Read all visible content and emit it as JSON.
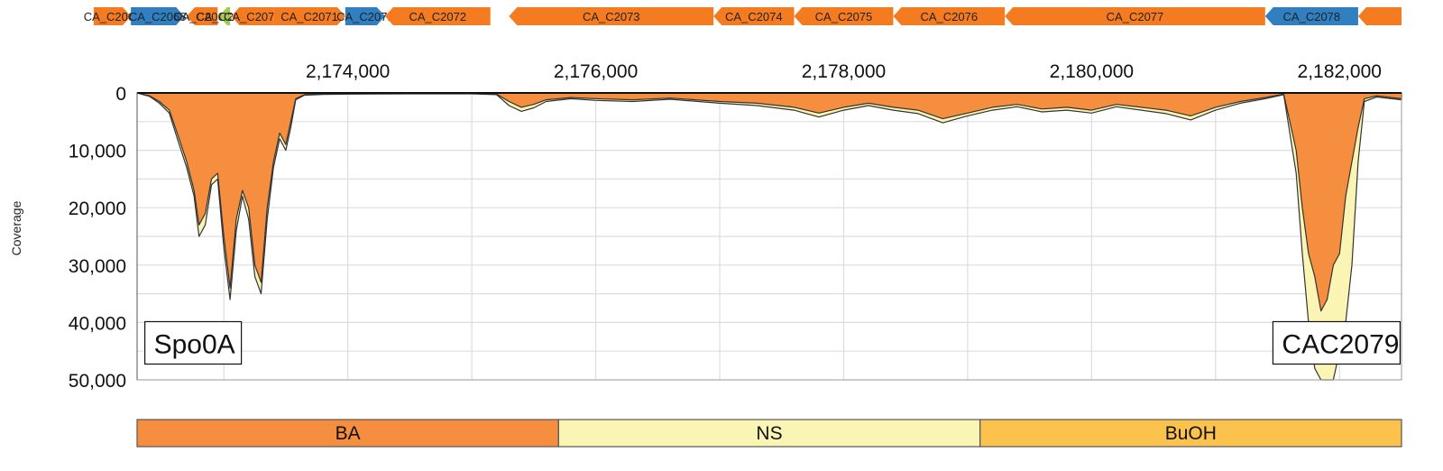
{
  "chart_data": {
    "type": "area",
    "title": "",
    "xlabel": "",
    "ylabel": "Coverage",
    "xlim": [
      2172300,
      2182500
    ],
    "ylim": [
      0,
      50000
    ],
    "y_inverted": true,
    "x_ticks": [
      2174000,
      2176000,
      2178000,
      2180000,
      2182000
    ],
    "x_tick_labels": [
      "2,174,000",
      "2,176,000",
      "2,178,000",
      "2,180,000",
      "2,182,000"
    ],
    "y_ticks": [
      0,
      10000,
      20000,
      30000,
      40000,
      50000
    ],
    "y_tick_labels": [
      "0",
      "10,000",
      "20,000",
      "30,000",
      "40,000",
      "50,000"
    ],
    "grid": true,
    "colors": {
      "BA": "#f58f3f",
      "NS": "#faf5b4",
      "BuOH": "#fbc24e",
      "gene_orange": "#f47b20",
      "gene_blue": "#2f7fc1",
      "gene_green": "#a9c94a",
      "grid": "#dddddd",
      "outline": "#333333"
    },
    "series": [
      {
        "name": "BA",
        "color": "#f58f3f",
        "x": [
          2172300,
          2172400,
          2172480,
          2172560,
          2172640,
          2172700,
          2172760,
          2172800,
          2172850,
          2172900,
          2172950,
          2173000,
          2173050,
          2173100,
          2173150,
          2173200,
          2173250,
          2173300,
          2173350,
          2173400,
          2173450,
          2173500,
          2173540,
          2173580,
          2173650,
          2173800,
          2174000,
          2174500,
          2175000,
          2175200,
          2175300,
          2175400,
          2175500,
          2175600,
          2175800,
          2176000,
          2176300,
          2176600,
          2177000,
          2177300,
          2177600,
          2177800,
          2178000,
          2178200,
          2178400,
          2178600,
          2178800,
          2179000,
          2179200,
          2179400,
          2179600,
          2179800,
          2180000,
          2180200,
          2180400,
          2180600,
          2180800,
          2181000,
          2181200,
          2181400,
          2181550,
          2181650,
          2181700,
          2181750,
          2181800,
          2181850,
          2181900,
          2181950,
          2182000,
          2182050,
          2182100,
          2182150,
          2182200,
          2182300,
          2182500
        ],
        "y": [
          0,
          500,
          1500,
          3000,
          8000,
          12000,
          17000,
          23000,
          21000,
          15000,
          14000,
          25000,
          34000,
          22000,
          17000,
          20000,
          30000,
          33000,
          20000,
          12000,
          7000,
          9000,
          5000,
          1000,
          300,
          200,
          150,
          100,
          100,
          200,
          1500,
          2500,
          2000,
          1200,
          800,
          1000,
          1200,
          900,
          1500,
          1800,
          2500,
          3500,
          2500,
          1800,
          2500,
          3000,
          4500,
          3500,
          2500,
          2000,
          2800,
          2500,
          3000,
          2000,
          2500,
          3000,
          4000,
          2500,
          1500,
          800,
          200,
          10000,
          20000,
          28000,
          32000,
          38000,
          36000,
          30000,
          28000,
          18000,
          12000,
          6000,
          1000,
          500,
          1000
        ]
      },
      {
        "name": "NS",
        "color": "#faf5b4",
        "x": [
          2172300,
          2172400,
          2172480,
          2172560,
          2172640,
          2172700,
          2172760,
          2172800,
          2172850,
          2172900,
          2172950,
          2173000,
          2173050,
          2173100,
          2173150,
          2173200,
          2173250,
          2173300,
          2173350,
          2173400,
          2173450,
          2173500,
          2173540,
          2173580,
          2173650,
          2173800,
          2174000,
          2174500,
          2175000,
          2175200,
          2175300,
          2175400,
          2175500,
          2175600,
          2175800,
          2176000,
          2176300,
          2176600,
          2177000,
          2177300,
          2177600,
          2177800,
          2178000,
          2178200,
          2178400,
          2178600,
          2178800,
          2179000,
          2179200,
          2179400,
          2179600,
          2179800,
          2180000,
          2180200,
          2180400,
          2180600,
          2180800,
          2181000,
          2181200,
          2181400,
          2181550,
          2181650,
          2181700,
          2181750,
          2181800,
          2181850,
          2181900,
          2181950,
          2182000,
          2182050,
          2182100,
          2182150,
          2182200,
          2182300,
          2182500
        ],
        "y": [
          0,
          600,
          1800,
          3500,
          9000,
          13000,
          18000,
          25000,
          23000,
          16000,
          15000,
          27000,
          36000,
          24000,
          18000,
          22000,
          32000,
          35000,
          22000,
          13000,
          8000,
          10000,
          6000,
          1200,
          400,
          250,
          200,
          150,
          150,
          300,
          2200,
          3200,
          2600,
          1500,
          1000,
          1300,
          1500,
          1100,
          1800,
          2200,
          3000,
          4200,
          3000,
          2200,
          3000,
          3600,
          5200,
          4000,
          3000,
          2400,
          3300,
          3000,
          3500,
          2400,
          3000,
          3600,
          4700,
          3000,
          1800,
          1000,
          300,
          14000,
          28000,
          40000,
          48000,
          50000,
          50000,
          50000,
          45000,
          40000,
          30000,
          12000,
          1500,
          700,
          1200
        ]
      },
      {
        "name": "BuOH",
        "color": "#fbc24e",
        "x": [
          2172300,
          2172400,
          2172480,
          2172560,
          2172640,
          2172700,
          2172760,
          2172800,
          2172850,
          2172900,
          2172950,
          2173000,
          2173050,
          2173100,
          2173150,
          2173200,
          2173250,
          2173300,
          2173350,
          2173400,
          2173450,
          2173500,
          2173540,
          2173580,
          2173650,
          2173800,
          2174000,
          2174500,
          2175000,
          2175200,
          2175300,
          2175400,
          2175500,
          2175600,
          2175800,
          2176000,
          2176300,
          2176600,
          2177000,
          2177300,
          2177600,
          2177800,
          2178000,
          2178200,
          2178400,
          2178600,
          2178800,
          2179000,
          2179200,
          2179400,
          2179600,
          2179800,
          2180000,
          2180200,
          2180400,
          2180600,
          2180800,
          2181000,
          2181200,
          2181400,
          2181550,
          2181650,
          2181700,
          2181750,
          2181800,
          2181850,
          2181900,
          2181950,
          2182000,
          2182050,
          2182100,
          2182150,
          2182200,
          2182300,
          2182500
        ],
        "y": [
          0,
          450,
          1400,
          2800,
          7500,
          11500,
          16000,
          22000,
          20000,
          14500,
          13500,
          24000,
          33000,
          21000,
          16500,
          19000,
          29000,
          32000,
          19000,
          11500,
          6500,
          8500,
          4800,
          900,
          250,
          180,
          120,
          90,
          90,
          180,
          1200,
          2000,
          1700,
          1000,
          700,
          900,
          1000,
          800,
          1300,
          1600,
          2200,
          3000,
          2200,
          1600,
          2200,
          2700,
          4000,
          3000,
          2200,
          1800,
          2500,
          2200,
          2700,
          1800,
          2200,
          2700,
          3500,
          2200,
          1300,
          700,
          180,
          9000,
          18000,
          26000,
          30000,
          35000,
          34000,
          28000,
          25000,
          16000,
          10000,
          5000,
          900,
          450,
          900
        ]
      }
    ],
    "genes": [
      {
        "label": "CA_C2065",
        "start": 2171950,
        "end": 2172250,
        "strand": "+",
        "color": "#f47b20"
      },
      {
        "label": "CA_C2068",
        "start": 2172250,
        "end": 2172680,
        "strand": "+",
        "color": "#2f7fc1"
      },
      {
        "label": "CA_C2069",
        "start": 2172700,
        "end": 2172950,
        "strand": "-",
        "color": "#f47b20"
      },
      {
        "label": "CA_C2069",
        "start": 2172960,
        "end": 2173050,
        "strand": "-",
        "color": "#a9c94a"
      },
      {
        "label": "CA_C2070",
        "start": 2173060,
        "end": 2173400,
        "strand": "-",
        "color": "#f47b20"
      },
      {
        "label": "CA_C2071",
        "start": 2173400,
        "end": 2173980,
        "strand": "+",
        "color": "#f47b20"
      },
      {
        "label": "CA_C2071",
        "start": 2173980,
        "end": 2174300,
        "strand": "+",
        "color": "#2f7fc1"
      },
      {
        "label": "CA_C2072",
        "start": 2174300,
        "end": 2175150,
        "strand": "-",
        "color": "#f47b20"
      },
      {
        "label": "CA_C2073",
        "start": 2175300,
        "end": 2176950,
        "strand": "-",
        "color": "#f47b20"
      },
      {
        "label": "CA_C2074",
        "start": 2176950,
        "end": 2177600,
        "strand": "-",
        "color": "#f47b20"
      },
      {
        "label": "CA_C2075",
        "start": 2177600,
        "end": 2178400,
        "strand": "-",
        "color": "#f47b20"
      },
      {
        "label": "CA_C2076",
        "start": 2178400,
        "end": 2179300,
        "strand": "-",
        "color": "#f47b20"
      },
      {
        "label": "CA_C2077",
        "start": 2179300,
        "end": 2181400,
        "strand": "-",
        "color": "#f47b20"
      },
      {
        "label": "CA_C2078",
        "start": 2181400,
        "end": 2182150,
        "strand": "-",
        "color": "#2f7fc1"
      },
      {
        "label": "",
        "start": 2182150,
        "end": 2182500,
        "strand": "-",
        "color": "#f47b20"
      }
    ],
    "annotations": [
      {
        "text": "Spo0A",
        "x": 2172450,
        "y": 43000
      },
      {
        "text": "CAC2079",
        "x": 2181550,
        "y": 43000
      }
    ],
    "legend": [
      {
        "label": "BA",
        "color": "#f58f3f"
      },
      {
        "label": "NS",
        "color": "#faf5b4"
      },
      {
        "label": "BuOH",
        "color": "#fbc24e"
      }
    ],
    "legend_placement": "bottom"
  }
}
